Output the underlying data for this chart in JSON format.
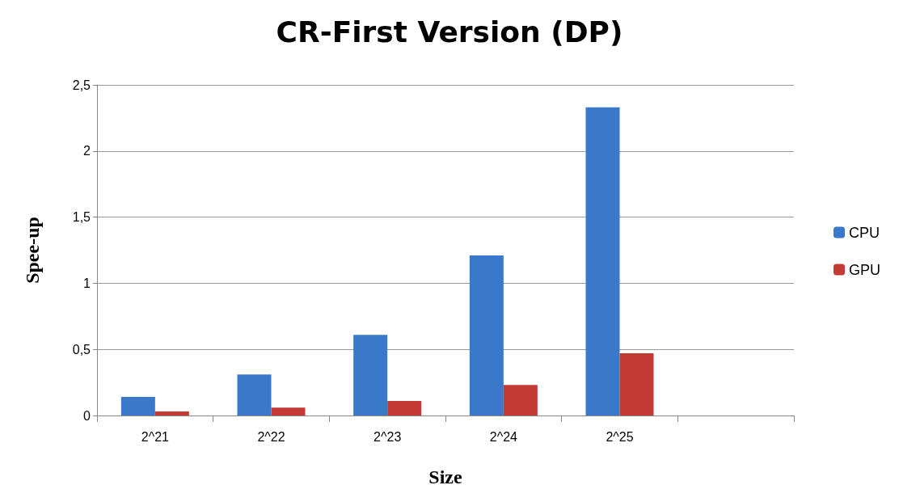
{
  "chart_data": {
    "type": "bar",
    "title": "CR-First Version (DP)",
    "xlabel": "Size",
    "ylabel": "Spee-up",
    "categories": [
      "2^21",
      "2^22",
      "2^23",
      "2^24",
      "2^25",
      null
    ],
    "series": [
      {
        "name": "CPU",
        "color": "#3a78c9",
        "values": [
          0.14,
          0.31,
          0.61,
          1.21,
          2.33,
          null
        ]
      },
      {
        "name": "GPU",
        "color": "#c43a35",
        "values": [
          0.03,
          0.06,
          0.11,
          0.23,
          0.47,
          null
        ]
      }
    ],
    "ylim": [
      0,
      2.5
    ],
    "yticks": [
      {
        "value": 0,
        "label": "0"
      },
      {
        "value": 0.5,
        "label": "0,5"
      },
      {
        "value": 1,
        "label": "1"
      },
      {
        "value": 1.5,
        "label": "1,5"
      },
      {
        "value": 2,
        "label": "2"
      },
      {
        "value": 2.5,
        "label": "2,5"
      }
    ],
    "grid": "y",
    "legend": "right"
  }
}
